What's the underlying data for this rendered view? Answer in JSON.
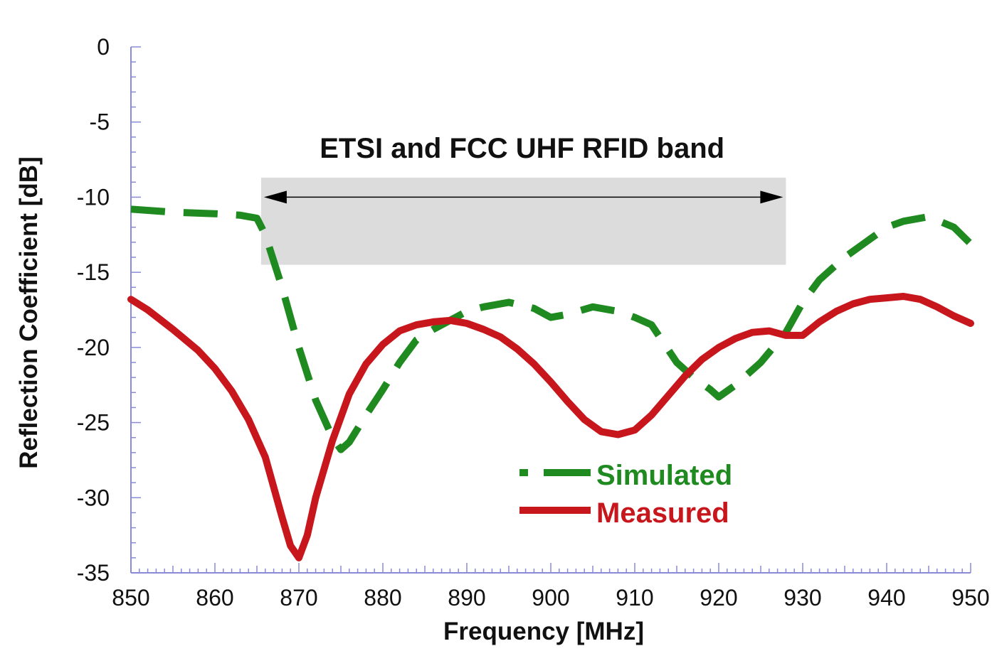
{
  "chart_data": {
    "type": "line",
    "xlabel": "Frequency [MHz]",
    "ylabel": "Reflection Coefficient [dB]",
    "xlim": [
      850,
      950
    ],
    "ylim": [
      -35,
      0
    ],
    "x_ticks": [
      "850",
      "860",
      "870",
      "880",
      "890",
      "900",
      "910",
      "920",
      "930",
      "940",
      "950"
    ],
    "y_ticks": [
      "0",
      "-5",
      "-10",
      "-15",
      "-20",
      "-25",
      "-30",
      "-35"
    ],
    "grid": false,
    "legend_position": "bottom-right",
    "annotation": {
      "text": "ETSI and FCC UHF RFID band",
      "x_range": [
        865.5,
        928
      ],
      "y_range": [
        -14.5,
        -8.7
      ],
      "arrow_y": -10,
      "fill_color": "#dcdcdc"
    },
    "series": [
      {
        "name": "Simulated",
        "color": "#1f8a1f",
        "style": "dashed",
        "x": [
          850,
          855,
          860,
          863,
          865,
          866,
          868,
          870,
          872,
          874,
          875,
          876,
          878,
          880,
          882,
          884,
          886,
          888,
          890,
          892,
          895,
          898,
          900,
          902,
          905,
          908,
          910,
          912,
          915,
          917,
          919,
          920,
          922,
          925,
          928,
          930,
          932,
          935,
          938,
          940,
          942,
          945,
          948,
          950
        ],
        "y": [
          -10.8,
          -11,
          -11.1,
          -11.2,
          -11.4,
          -12.5,
          -16,
          -20,
          -23.5,
          -26,
          -26.8,
          -26.3,
          -24.5,
          -22.8,
          -21,
          -19.5,
          -18.8,
          -18.2,
          -17.6,
          -17.3,
          -17,
          -17.4,
          -18,
          -17.8,
          -17.3,
          -17.6,
          -18,
          -18.5,
          -21,
          -22,
          -22.8,
          -23.3,
          -22.5,
          -21,
          -19,
          -17,
          -15.5,
          -14,
          -12.8,
          -12,
          -11.6,
          -11.3,
          -12,
          -13.1
        ]
      },
      {
        "name": "Measured",
        "color": "#c8161d",
        "style": "solid",
        "x": [
          850,
          852,
          855,
          858,
          860,
          862,
          864,
          866,
          868,
          869,
          870,
          871,
          872,
          874,
          876,
          878,
          880,
          882,
          884,
          886,
          888,
          890,
          892,
          894,
          896,
          898,
          900,
          902,
          904,
          906,
          908,
          910,
          912,
          914,
          916,
          918,
          920,
          922,
          924,
          926,
          928,
          930,
          932,
          934,
          936,
          938,
          940,
          942,
          944,
          946,
          948,
          950
        ],
        "y": [
          -16.8,
          -17.5,
          -18.8,
          -20.2,
          -21.4,
          -22.9,
          -24.8,
          -27.3,
          -31.3,
          -33.2,
          -34,
          -32.5,
          -30,
          -26.2,
          -23.1,
          -21.1,
          -19.8,
          -18.9,
          -18.5,
          -18.3,
          -18.2,
          -18.4,
          -18.8,
          -19.3,
          -20.1,
          -21.1,
          -22.3,
          -23.6,
          -24.8,
          -25.6,
          -25.8,
          -25.5,
          -24.5,
          -23.2,
          -21.9,
          -20.8,
          -20,
          -19.4,
          -19,
          -18.9,
          -19.2,
          -19.2,
          -18.3,
          -17.6,
          -17.1,
          -16.8,
          -16.7,
          -16.6,
          -16.8,
          -17.3,
          -17.9,
          -18.4
        ]
      }
    ]
  }
}
